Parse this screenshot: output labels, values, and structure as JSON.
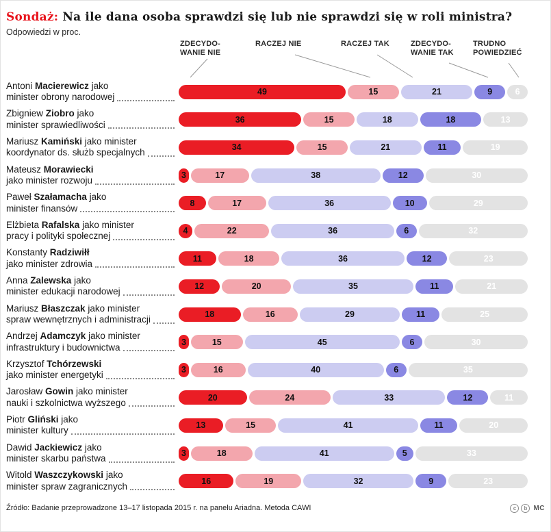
{
  "title": {
    "highlight": "Sondaż:",
    "rest": " Na ile dana osoba sprawdzi się lub nie sprawdzi się w roli ministra?"
  },
  "subtitle": "Odpowiedzi w proc.",
  "legend": [
    {
      "l1": "ZDECYDO-",
      "l2": "WANIE NIE"
    },
    {
      "l1": "RACZEJ NIE",
      "l2": ""
    },
    {
      "l1": "RACZEJ TAK",
      "l2": ""
    },
    {
      "l1": "ZDECYDO-",
      "l2": "WANIE TAK"
    },
    {
      "l1": "TRUDNO",
      "l2": "POWIEDZIEĆ"
    }
  ],
  "footer": {
    "source": "Źródło: Badanie przeprowadzone 13–17 listopada 2015 r. na panelu Ariadna. Metoda CAWI",
    "credit": "MC",
    "cc_icon_1": "c",
    "cc_icon_2": "b"
  },
  "chart_data": {
    "type": "bar",
    "stacked": true,
    "orientation": "horizontal",
    "unit": "percent",
    "title": "Sondaż: Na ile dana osoba sprawdzi się lub nie sprawdzi się w roli ministra?",
    "categories": [
      "Zdecydowanie nie",
      "Raczej nie",
      "Raczej tak",
      "Zdecydowanie tak",
      "Trudno powiedzieć"
    ],
    "colors": [
      "#ea1d25",
      "#f3a6ad",
      "#ccccf1",
      "#8a88e3",
      "#e3e3e3"
    ],
    "text_colors": [
      "#111111",
      "#111111",
      "#111111",
      "#111111",
      "#ffffff"
    ],
    "xlim": [
      0,
      100
    ],
    "legend_position": "top",
    "grid": false,
    "rows": [
      {
        "line1_pre": "Antoni ",
        "line1_bold": "Macierewicz",
        "line1_post": " jako",
        "line2": "minister obrony narodowej",
        "values": [
          49,
          15,
          21,
          9,
          6
        ]
      },
      {
        "line1_pre": "Zbigniew ",
        "line1_bold": "Ziobro",
        "line1_post": " jako",
        "line2": "minister sprawiedliwości",
        "values": [
          36,
          15,
          18,
          18,
          13
        ]
      },
      {
        "line1_pre": "Mariusz ",
        "line1_bold": "Kamiński",
        "line1_post": " jako minister",
        "line2": "koordynator ds. służb specjalnych",
        "values": [
          34,
          15,
          21,
          11,
          19
        ]
      },
      {
        "line1_pre": "Mateusz ",
        "line1_bold": "Morawiecki",
        "line1_post": "",
        "line2": "jako minister rozwoju",
        "values": [
          3,
          17,
          38,
          12,
          30
        ]
      },
      {
        "line1_pre": "Paweł ",
        "line1_bold": "Szałamacha",
        "line1_post": " jako",
        "line2": "minister finansów",
        "values": [
          8,
          17,
          36,
          10,
          29
        ]
      },
      {
        "line1_pre": "Elżbieta ",
        "line1_bold": "Rafalska",
        "line1_post": " jako minister",
        "line2": "pracy i polityki społecznej",
        "values": [
          4,
          22,
          36,
          6,
          32
        ]
      },
      {
        "line1_pre": "Konstanty ",
        "line1_bold": "Radziwiłł",
        "line1_post": "",
        "line2": "jako minister zdrowia",
        "values": [
          11,
          18,
          36,
          12,
          23
        ]
      },
      {
        "line1_pre": "Anna ",
        "line1_bold": "Zalewska",
        "line1_post": " jako",
        "line2": "minister edukacji narodowej",
        "values": [
          12,
          20,
          35,
          11,
          21
        ]
      },
      {
        "line1_pre": "Mariusz ",
        "line1_bold": "Błaszczak",
        "line1_post": " jako minister",
        "line2": "spraw wewnętrznych i administracji",
        "values": [
          18,
          16,
          29,
          11,
          25
        ]
      },
      {
        "line1_pre": "Andrzej ",
        "line1_bold": "Adamczyk",
        "line1_post": " jako minister",
        "line2": "infrastruktury i budownictwa",
        "values": [
          3,
          15,
          45,
          6,
          30
        ]
      },
      {
        "line1_pre": "Krzysztof ",
        "line1_bold": "Tchórzewski",
        "line1_post": "",
        "line2": "jako minister energetyki",
        "values": [
          3,
          16,
          40,
          6,
          35
        ]
      },
      {
        "line1_pre": "Jarosław ",
        "line1_bold": "Gowin",
        "line1_post": " jako minister",
        "line2": "nauki i szkolnictwa wyższego",
        "values": [
          20,
          24,
          33,
          12,
          11
        ]
      },
      {
        "line1_pre": "Piotr ",
        "line1_bold": "Gliński",
        "line1_post": " jako",
        "line2": "minister kultury",
        "values": [
          13,
          15,
          41,
          11,
          20
        ]
      },
      {
        "line1_pre": "Dawid ",
        "line1_bold": "Jackiewicz",
        "line1_post": " jako",
        "line2": "minister skarbu państwa",
        "values": [
          3,
          18,
          41,
          5,
          33
        ]
      },
      {
        "line1_pre": "Witold ",
        "line1_bold": "Waszczykowski",
        "line1_post": " jako",
        "line2": "minister spraw zagranicznych",
        "values": [
          16,
          19,
          32,
          9,
          23
        ]
      }
    ]
  }
}
